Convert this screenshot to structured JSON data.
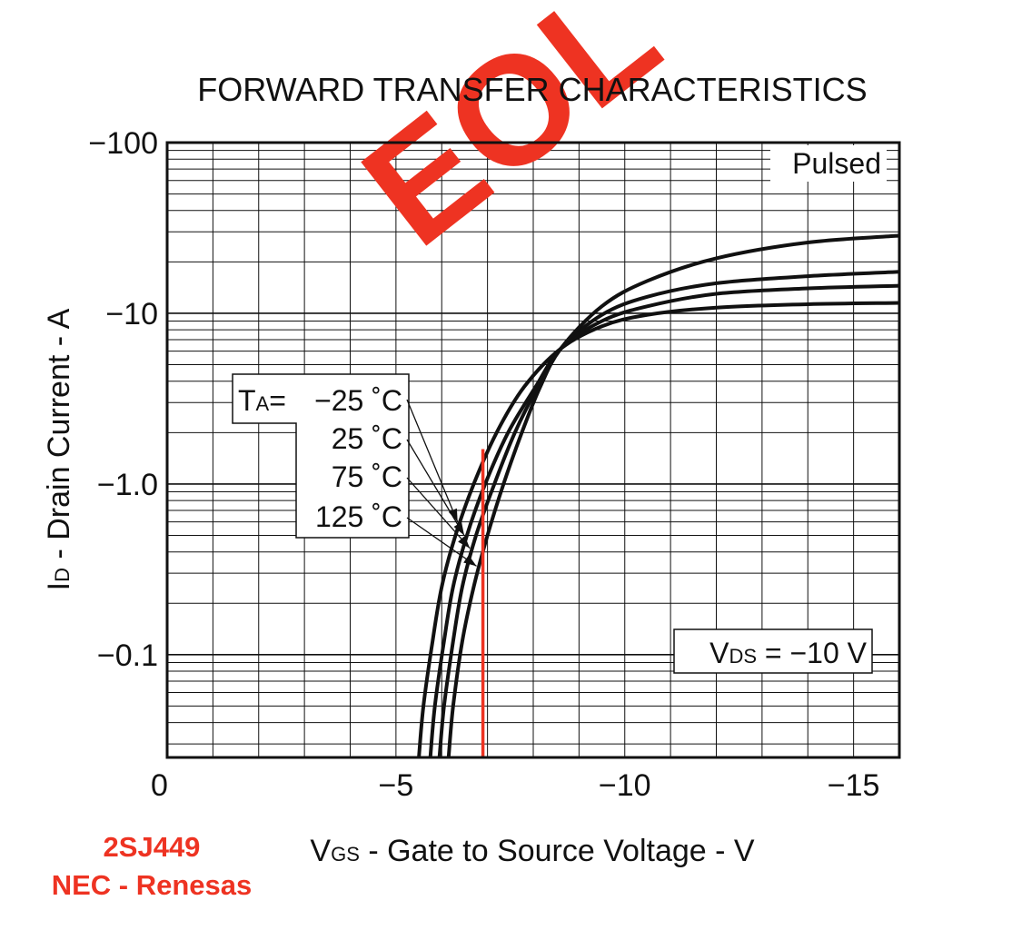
{
  "chart_data": {
    "type": "line",
    "title": "FORWARD TRANSFER CHARACTERISTICS",
    "xlabel": {
      "main": "V",
      "sub": "GS",
      "rest": " - Gate to Source Voltage - V"
    },
    "ylabel": {
      "main": "I",
      "sub": "D",
      "rest": " - Drain Current - A"
    },
    "xlim": [
      0,
      -16
    ],
    "ylim": [
      -0.025,
      -100
    ],
    "y_scale": "log",
    "x_ticks": [
      {
        "value": 0,
        "label": "0"
      },
      {
        "value": -5,
        "label": "−5"
      },
      {
        "value": -10,
        "label": "−10"
      },
      {
        "value": -15,
        "label": "−15"
      }
    ],
    "y_ticks": [
      {
        "value": -0.1,
        "label": "−0.1"
      },
      {
        "value": -1,
        "label": "−1.0"
      },
      {
        "value": -10,
        "label": "−10"
      },
      {
        "value": -100,
        "label": "−100"
      }
    ],
    "grid": true,
    "annotations": {
      "pulsed": "Pulsed",
      "vds": {
        "main": "V",
        "sub": "DS",
        "rest": " = −10 V"
      },
      "legend_prefix": {
        "main": "T",
        "sub": "A",
        "rest": "= "
      },
      "watermark": "EOL"
    },
    "series": [
      {
        "name": "−25 ˚C",
        "x": [
          -5.5,
          -5.6,
          -5.8,
          -6.0,
          -6.3,
          -6.7,
          -7.2,
          -7.8,
          -8.6,
          -9.5,
          -10.5,
          -12,
          -14,
          -16
        ],
        "y": [
          -0.025,
          -0.05,
          -0.12,
          -0.25,
          -0.5,
          -1.0,
          -2.0,
          -3.7,
          -6.2,
          -8.4,
          -9.8,
          -10.8,
          -11.3,
          -11.5
        ]
      },
      {
        "name": "25 ˚C",
        "x": [
          -5.75,
          -5.85,
          -6.05,
          -6.25,
          -6.55,
          -6.95,
          -7.45,
          -8.05,
          -8.6,
          -9.5,
          -10.5,
          -12,
          -14,
          -16
        ],
        "y": [
          -0.025,
          -0.05,
          -0.12,
          -0.25,
          -0.5,
          -1.0,
          -2.0,
          -3.7,
          -6.2,
          -9.0,
          -11.0,
          -13.0,
          -14.0,
          -14.5
        ]
      },
      {
        "name": "75 ˚C",
        "x": [
          -5.95,
          -6.05,
          -6.25,
          -6.45,
          -6.75,
          -7.15,
          -7.6,
          -8.1,
          -8.6,
          -9.5,
          -10.5,
          -12,
          -14,
          -16
        ],
        "y": [
          -0.025,
          -0.05,
          -0.12,
          -0.25,
          -0.5,
          -1.0,
          -2.0,
          -3.7,
          -6.2,
          -9.8,
          -12.5,
          -15.0,
          -16.5,
          -17.5
        ]
      },
      {
        "name": "125 ˚C",
        "x": [
          -6.15,
          -6.25,
          -6.45,
          -6.7,
          -7.0,
          -7.35,
          -7.75,
          -8.15,
          -8.6,
          -9.5,
          -10.5,
          -12,
          -14,
          -16
        ],
        "y": [
          -0.025,
          -0.05,
          -0.12,
          -0.25,
          -0.5,
          -1.0,
          -2.0,
          -3.7,
          -6.2,
          -11.0,
          -15.5,
          -21.0,
          -26.0,
          -28.5
        ]
      }
    ],
    "marker_line": {
      "x": -6.9,
      "y_from": -0.025,
      "y_to": -1.6,
      "color": "#ee3322"
    }
  },
  "footer": {
    "part_number": "2SJ449",
    "manufacturer": "NEC - Renesas"
  },
  "colors": {
    "curve": "#111111",
    "grid": "#111111",
    "accent": "#ee3322"
  }
}
